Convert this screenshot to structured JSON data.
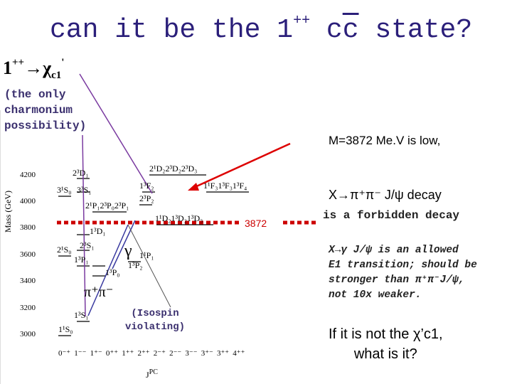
{
  "title": {
    "parts": [
      "can it be the 1",
      "++",
      "c",
      "c",
      " state?"
    ]
  },
  "callout": {
    "state": "1",
    "jpc": "++",
    "arrow": "→",
    "chi": "χ",
    "sub": "c1",
    "prime": "'",
    "note": [
      "(the only",
      "charmonium",
      "possibility)"
    ]
  },
  "diagram": {
    "y_label": "Mass (GeV)",
    "yticks": [
      3000,
      3200,
      3400,
      3600,
      3800,
      4000,
      4200
    ],
    "x_title": "J",
    "x_title_sup": "PC",
    "jpc": [
      "0⁻⁺",
      "1⁻⁻",
      "1⁺⁻",
      "0⁺⁺",
      "1⁺⁺",
      "2⁺⁺",
      "2⁻⁺",
      "2⁻⁻",
      "3⁻⁻",
      "3⁺⁻",
      "3⁺⁺",
      "4⁺⁺"
    ],
    "levels": [
      "1¹S₀",
      "1³S₁",
      "2¹S₀",
      "2³S₁",
      "1¹P₁",
      "1³P₀",
      "1³P₁",
      "1³P₂",
      "1³D₁",
      "3¹S₀",
      "3³S₁",
      "2¹P₁2³P₀2³P₁",
      "2³P₂",
      "2³D₁",
      "1¹D₂1³D₂1³D₃",
      "1³F₂",
      "1¹F₃1³F₃1³F₄",
      "2¹D₂2³D₂2³D₃"
    ],
    "mass_marker": "3872",
    "gamma": "γ",
    "pipi": "π⁺π⁻",
    "isospin": [
      "(Isospin",
      "violating)"
    ]
  },
  "right": {
    "mass_note": "M=3872 Me.V is low,",
    "decay": "X→π⁺π⁻ J/ψ decay",
    "forbidden": "is a forbidden decay",
    "e1": [
      "X→γ J/ψ is an allowed",
      "E1 transition; should be",
      "stronger than π⁺π⁻J/ψ,",
      "not 10x weaker."
    ],
    "question": [
      "If it is not the χ’c1,",
      "what is it?"
    ]
  }
}
